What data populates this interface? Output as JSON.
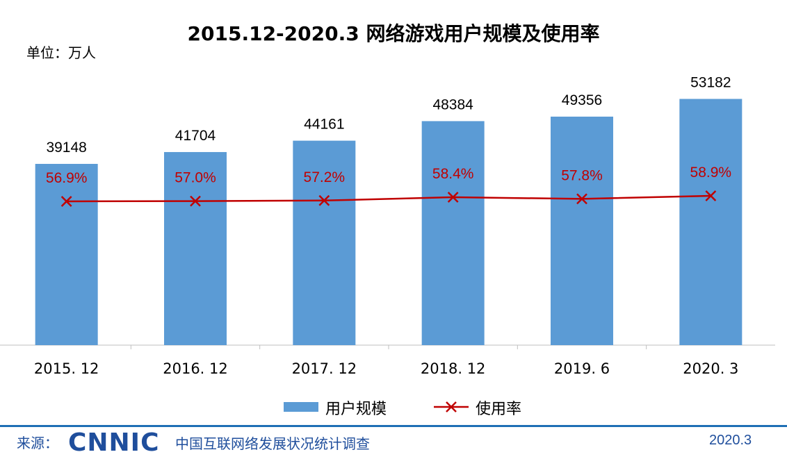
{
  "chart_data": {
    "type": "bar",
    "title": "2015.12-2020.3 网络游戏用户规模及使用率",
    "unit_label": "单位：万人",
    "categories": [
      "2015. 12",
      "2016. 12",
      "2017. 12",
      "2018. 12",
      "2019. 6",
      "2020. 3"
    ],
    "series": [
      {
        "name": "用户规模",
        "kind": "bar",
        "color": "#5b9bd5",
        "values": [
          39148,
          41704,
          44161,
          48384,
          49356,
          53182
        ],
        "labels": [
          "39148",
          "41704",
          "44161",
          "48384",
          "49356",
          "53182"
        ]
      },
      {
        "name": "使用率",
        "kind": "line",
        "marker": "x",
        "color": "#c00000",
        "values": [
          56.9,
          57.0,
          57.2,
          58.4,
          57.8,
          58.9
        ],
        "labels": [
          "56.9%",
          "57.0%",
          "57.2%",
          "58.4%",
          "57.8%",
          "58.9%"
        ]
      }
    ],
    "ylim": [
      0,
      60000
    ],
    "ylim_rate": [
      0,
      100
    ],
    "grid": false,
    "legend_placement": "bottom"
  },
  "footer": {
    "source_label": "来源：",
    "logo": "CNNIC",
    "description": "中国互联网络发展状况统计调查",
    "date": "2020.3"
  }
}
